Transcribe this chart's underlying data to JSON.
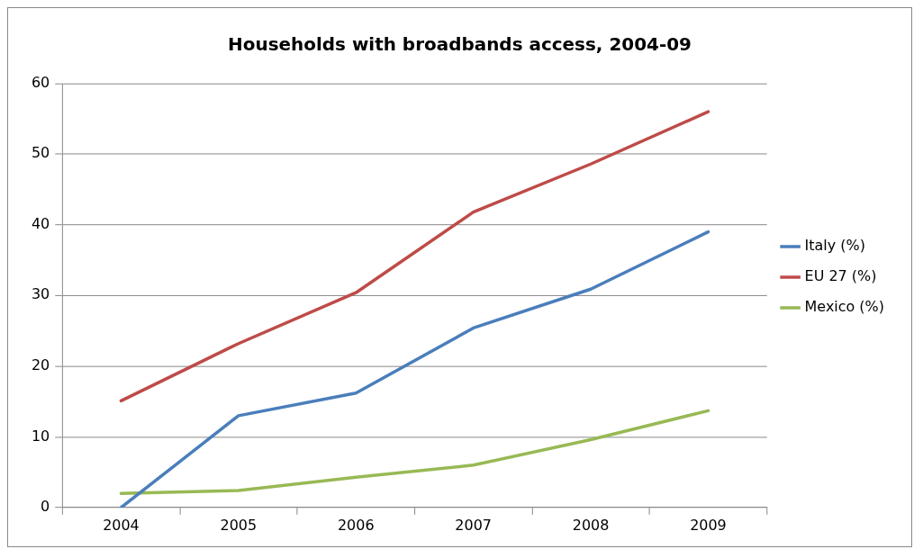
{
  "chart_data": {
    "type": "line",
    "title": "Households with broadbands access, 2004-09",
    "categories": [
      "2004",
      "2005",
      "2006",
      "2007",
      "2008",
      "2009"
    ],
    "series": [
      {
        "name": "Italy (%)",
        "color": "#4a7ebb",
        "values": [
          0,
          13.0,
          16.2,
          25.4,
          30.9,
          39.0
        ]
      },
      {
        "name": "EU 27 (%)",
        "color": "#be4b48",
        "values": [
          15.1,
          23.2,
          30.4,
          41.8,
          48.6,
          56.0
        ]
      },
      {
        "name": "Mexico (%)",
        "color": "#98b954",
        "values": [
          2.0,
          2.4,
          4.3,
          6.0,
          9.6,
          13.7
        ]
      }
    ],
    "ylim": [
      0,
      60
    ],
    "yticks": [
      0,
      10,
      20,
      30,
      40,
      50,
      60
    ],
    "grid": "y",
    "legend": "right",
    "marker": "none",
    "line_style": "solid"
  }
}
